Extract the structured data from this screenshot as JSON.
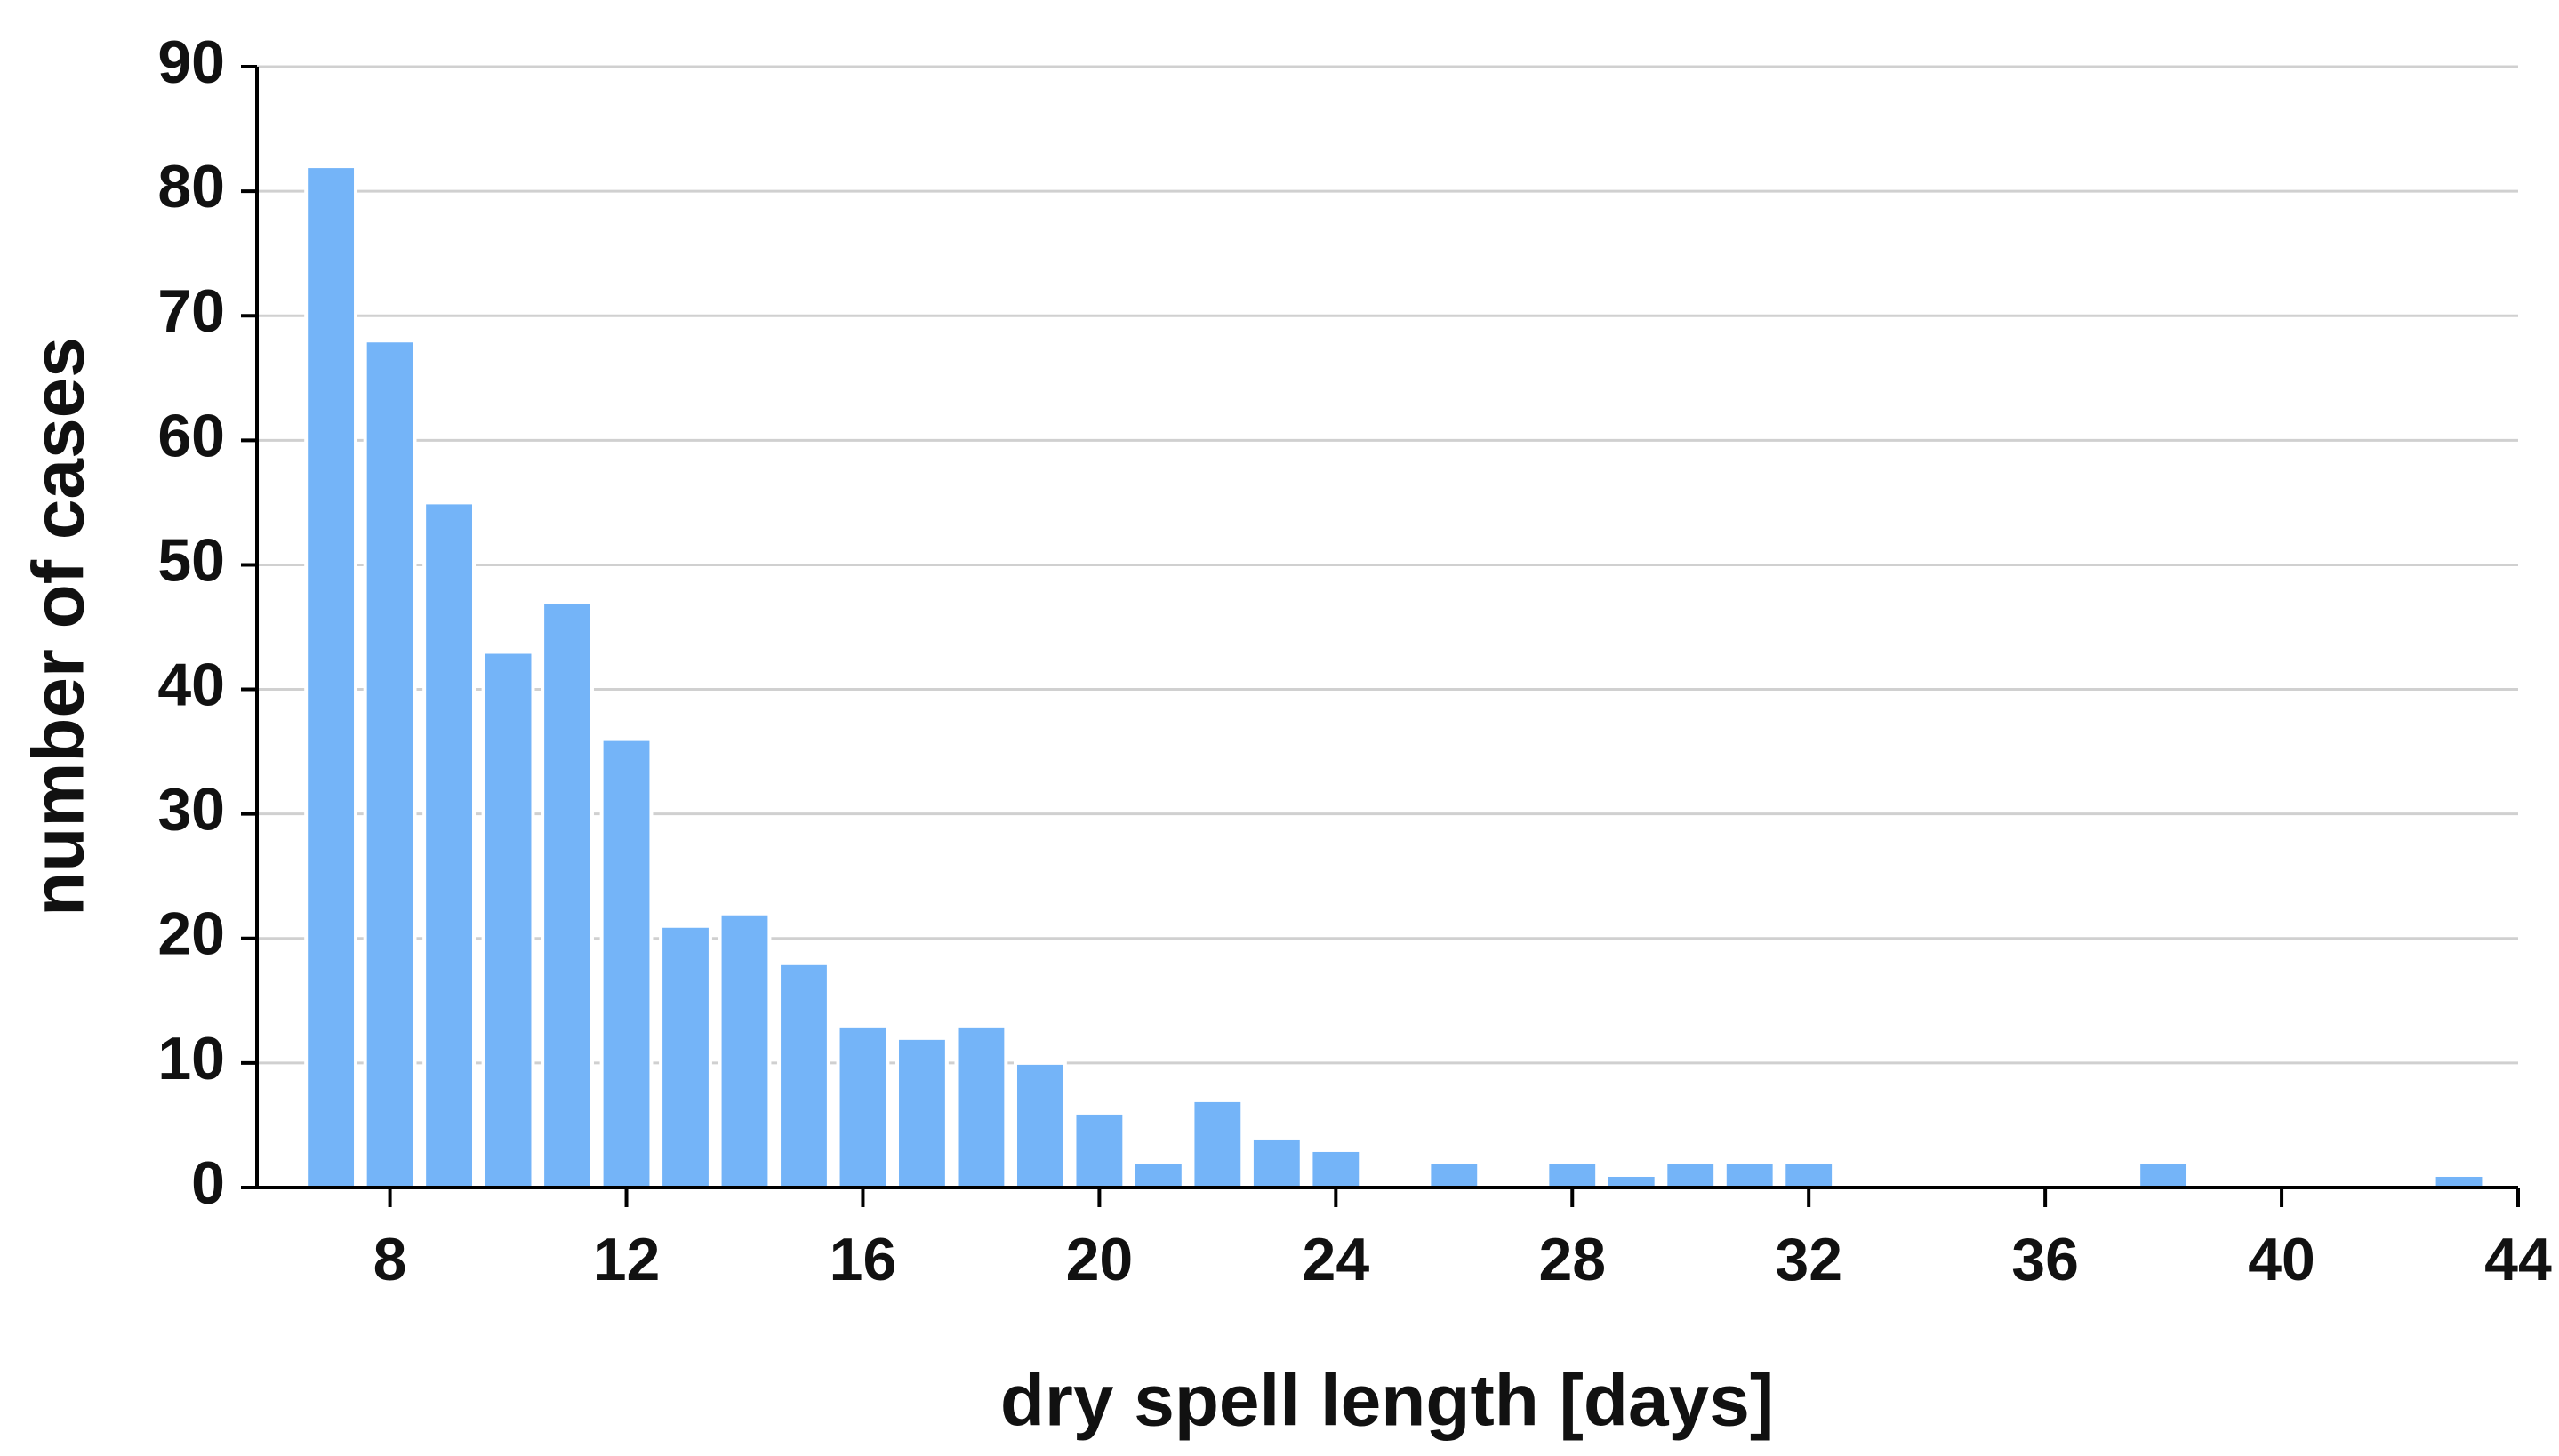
{
  "chart_data": {
    "type": "bar",
    "x_label": "dry spell length [days]",
    "y_label": "number of cases",
    "x": [
      7,
      8,
      9,
      10,
      11,
      12,
      13,
      14,
      15,
      16,
      17,
      18,
      19,
      20,
      21,
      22,
      23,
      24,
      25,
      26,
      27,
      28,
      29,
      30,
      31,
      32,
      33,
      34,
      35,
      36,
      37,
      38,
      39,
      40,
      41,
      42,
      43
    ],
    "values": [
      82,
      68,
      55,
      43,
      47,
      36,
      21,
      22,
      18,
      13,
      12,
      13,
      10,
      6,
      2,
      7,
      4,
      3,
      0,
      2,
      0,
      2,
      1,
      2,
      2,
      2,
      0,
      0,
      0,
      0,
      0,
      2,
      0,
      0,
      0,
      0,
      1
    ],
    "color": "#74b4f8",
    "xlim": [
      5.75,
      44
    ],
    "xticks": [
      8,
      12,
      16,
      20,
      24,
      28,
      32,
      36,
      40,
      44
    ],
    "ylim": [
      0,
      90
    ],
    "yticks": [
      0,
      10,
      20,
      30,
      40,
      50,
      60,
      70,
      80,
      90
    ],
    "grid": true
  }
}
